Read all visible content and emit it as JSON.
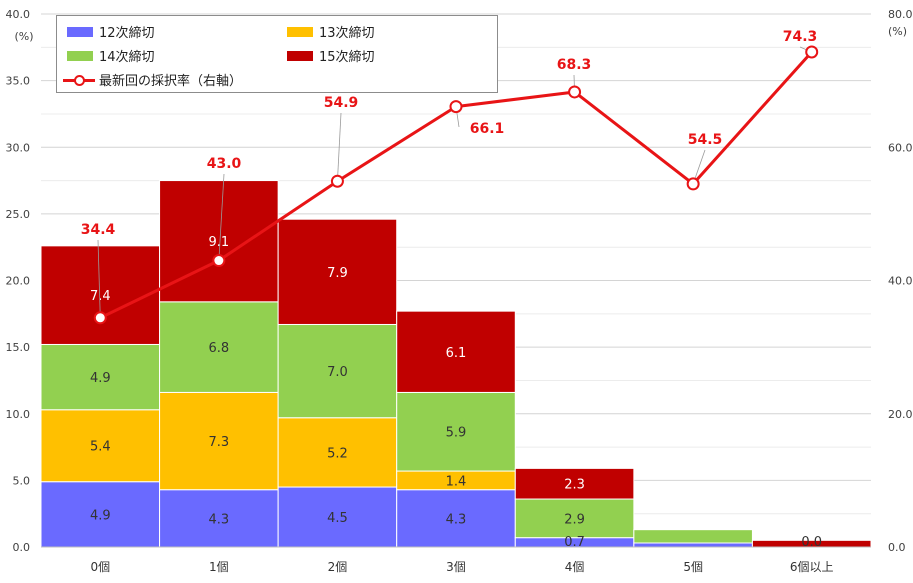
{
  "chart_data": {
    "type": "bar",
    "stacked": true,
    "categories": [
      "0個",
      "1個",
      "2個",
      "3個",
      "4個",
      "5個",
      "6個以上"
    ],
    "series": [
      {
        "name": "12次締切",
        "color": "#6a6aff",
        "values": [
          4.9,
          4.3,
          4.5,
          4.3,
          0.7,
          0.3,
          0.0
        ]
      },
      {
        "name": "13次締切",
        "color": "#ffc000",
        "values": [
          5.4,
          7.3,
          5.2,
          1.4,
          0.0,
          0.0,
          0.0
        ]
      },
      {
        "name": "14次締切",
        "color": "#92d050",
        "values": [
          4.9,
          6.8,
          7.0,
          5.9,
          2.9,
          1.0,
          0.0
        ]
      },
      {
        "name": "15次締切",
        "color": "#c00000",
        "values": [
          7.4,
          9.1,
          7.9,
          6.1,
          2.3,
          0.0,
          0.5
        ]
      }
    ],
    "bar_labels": [
      [
        "4.9",
        "4.3",
        "4.5",
        "4.3",
        "0.7",
        "",
        "0.0"
      ],
      [
        "5.4",
        "7.3",
        "5.2",
        "1.4",
        "",
        "",
        ""
      ],
      [
        "4.9",
        "6.8",
        "7.0",
        "5.9",
        "2.9",
        "",
        ""
      ],
      [
        "7.4",
        "9.1",
        "7.9",
        "6.1",
        "2.3",
        "",
        ""
      ]
    ],
    "line": {
      "name": "最新回の採択率（右軸）",
      "color": "#e81416",
      "values": [
        34.4,
        43.0,
        54.9,
        66.1,
        68.3,
        54.5,
        74.3
      ],
      "labels": [
        "34.4",
        "43.0",
        "54.9",
        "66.1",
        "68.3",
        "54.5",
        "74.3"
      ]
    },
    "y_left": {
      "min": 0,
      "max": 40,
      "ticks": [
        "0.0",
        "5.0",
        "10.0",
        "15.0",
        "20.0",
        "25.0",
        "30.0",
        "35.0",
        "40.0"
      ],
      "unit": "(%)"
    },
    "y_right": {
      "min": 0,
      "max": 80,
      "ticks": [
        "0.0",
        "20.0",
        "40.0",
        "60.0",
        "80.0"
      ],
      "unit": "(%)"
    },
    "grid": true,
    "legend_position": "top-left"
  }
}
